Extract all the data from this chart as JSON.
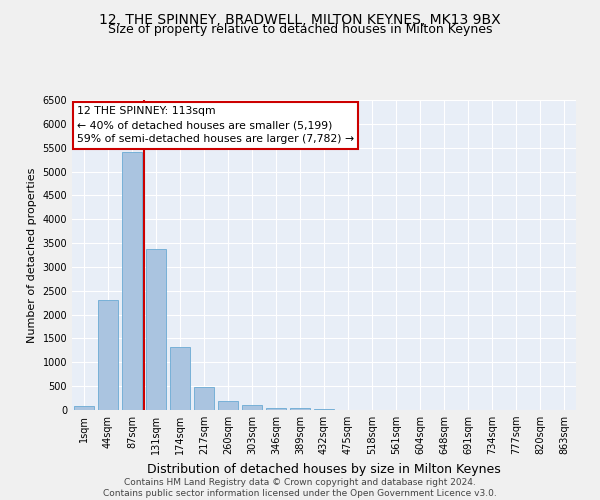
{
  "title": "12, THE SPINNEY, BRADWELL, MILTON KEYNES, MK13 9BX",
  "subtitle": "Size of property relative to detached houses in Milton Keynes",
  "xlabel": "Distribution of detached houses by size in Milton Keynes",
  "ylabel": "Number of detached properties",
  "categories": [
    "1sqm",
    "44sqm",
    "87sqm",
    "131sqm",
    "174sqm",
    "217sqm",
    "260sqm",
    "303sqm",
    "346sqm",
    "389sqm",
    "432sqm",
    "475sqm",
    "518sqm",
    "561sqm",
    "604sqm",
    "648sqm",
    "691sqm",
    "734sqm",
    "777sqm",
    "820sqm",
    "863sqm"
  ],
  "values": [
    75,
    2300,
    5400,
    3380,
    1320,
    490,
    185,
    95,
    50,
    35,
    15,
    10,
    5,
    3,
    2,
    1,
    1,
    0,
    0,
    0,
    0
  ],
  "bar_color": "#aac4e0",
  "bar_edge_color": "#6aaad4",
  "vline_color": "#cc0000",
  "annotation_text": "12 THE SPINNEY: 113sqm\n← 40% of detached houses are smaller (5,199)\n59% of semi-detached houses are larger (7,782) →",
  "annotation_box_color": "#ffffff",
  "annotation_box_edge": "#cc0000",
  "ylim": [
    0,
    6500
  ],
  "yticks": [
    0,
    500,
    1000,
    1500,
    2000,
    2500,
    3000,
    3500,
    4000,
    4500,
    5000,
    5500,
    6000,
    6500
  ],
  "footer": "Contains HM Land Registry data © Crown copyright and database right 2024.\nContains public sector information licensed under the Open Government Licence v3.0.",
  "bg_color": "#e8eef7",
  "grid_color": "#ffffff",
  "title_fontsize": 10,
  "subtitle_fontsize": 9,
  "tick_fontsize": 7,
  "ylabel_fontsize": 8,
  "xlabel_fontsize": 9,
  "footer_fontsize": 6.5,
  "annotation_fontsize": 7.8
}
